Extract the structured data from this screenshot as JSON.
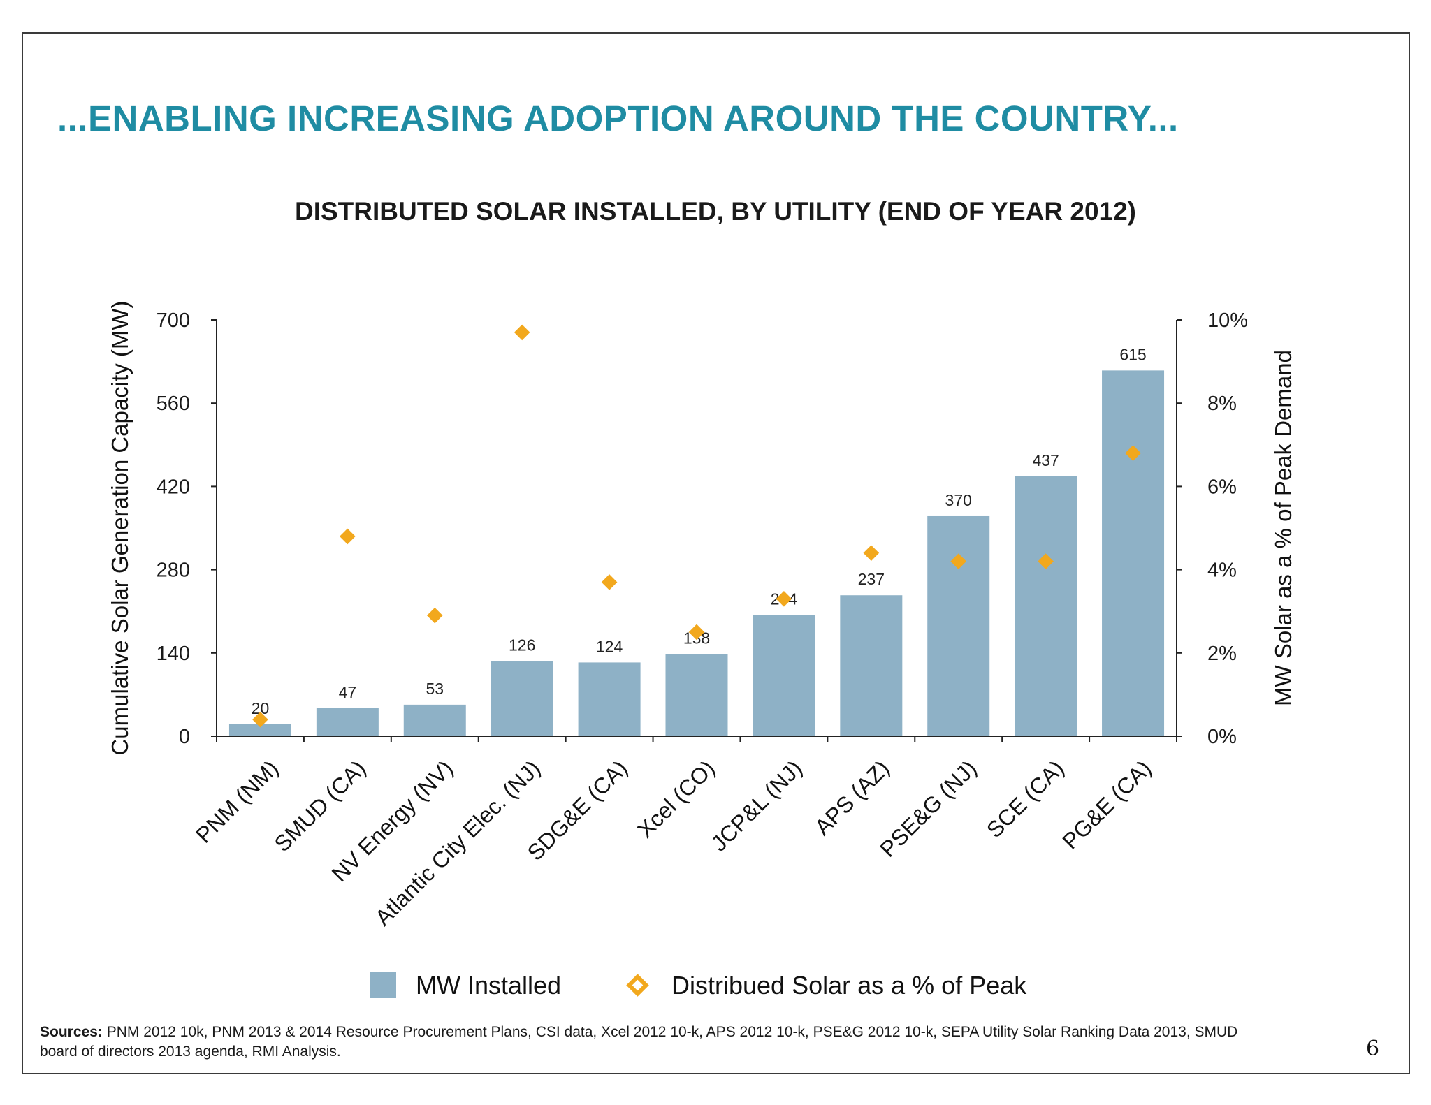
{
  "headline": "...ENABLING INCREASING ADOPTION AROUND THE COUNTRY...",
  "chart_data": {
    "type": "bar",
    "title": "DISTRIBUTED SOLAR INSTALLED, BY UTILITY (END OF YEAR 2012)",
    "categories": [
      "PNM (NM)",
      "SMUD (CA)",
      "NV Energy (NV)",
      "Atlantic City Elec. (NJ)",
      "SDG&E (CA)",
      "Xcel (CO)",
      "JCP&L (NJ)",
      "APS (AZ)",
      "PSE&G (NJ)",
      "SCE (CA)",
      "PG&E (CA)"
    ],
    "series": [
      {
        "name": "MW Installed",
        "type": "bar",
        "axis": "left",
        "color": "#8eb1c6",
        "values": [
          20,
          47,
          53,
          126,
          124,
          138,
          204,
          237,
          370,
          437,
          615
        ],
        "data_labels": [
          "20",
          "47",
          "53",
          "126",
          "124",
          "138",
          "204",
          "237",
          "370",
          "437",
          "615"
        ]
      },
      {
        "name": "Distribued Solar as a % of Peak",
        "type": "scatter",
        "marker": "diamond",
        "axis": "right",
        "color": "#f2a81d",
        "values": [
          0.4,
          4.8,
          2.9,
          9.7,
          3.7,
          2.5,
          3.3,
          4.4,
          4.2,
          4.2,
          6.8
        ]
      }
    ],
    "ylabel": "Cumulative Solar Generation Capacity (MW)",
    "ylim": [
      0,
      700
    ],
    "yticks": [
      "0",
      "140",
      "280",
      "420",
      "560",
      "700"
    ],
    "y2label": "MW Solar as a % of Peak Demand",
    "y2lim": [
      0,
      10
    ],
    "y2ticks": [
      "0%",
      "2%",
      "4%",
      "6%",
      "8%",
      "10%"
    ],
    "grid": false,
    "legend": "bottom"
  },
  "sources": {
    "label": "Sources:",
    "text": " PNM 2012 10k, PNM 2013 & 2014 Resource Procurement Plans, CSI data, Xcel 2012 10-k, APS 2012 10-k, PSE&G 2012 10-k, SEPA Utility Solar Ranking Data 2013, SMUD board of directors 2013 agenda, RMI Analysis."
  },
  "page_number": "6"
}
